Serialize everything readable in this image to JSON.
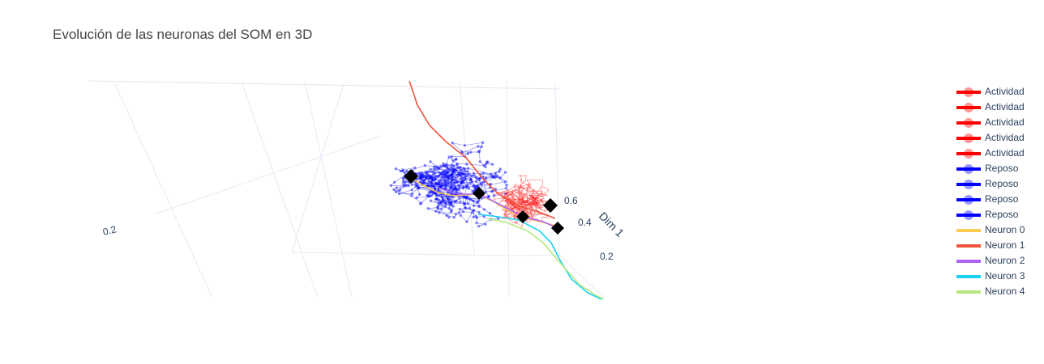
{
  "chart_data": {
    "type": "line3d",
    "title": "Evolución de las neuronas del SOM en 3D",
    "axes": {
      "x": {
        "title": "Dim 1",
        "ticks": [
          "0.2",
          "0.4",
          "0.6"
        ]
      },
      "y": {
        "title": "",
        "ticks": [
          "0.2"
        ]
      }
    },
    "grid": true,
    "legend_position": "right",
    "series": [
      {
        "name": "Actividad",
        "color": "#ff0000",
        "kind": "lines+markers"
      },
      {
        "name": "Actividad",
        "color": "#ff0000",
        "kind": "lines+markers"
      },
      {
        "name": "Actividad",
        "color": "#ff0000",
        "kind": "lines+markers"
      },
      {
        "name": "Actividad",
        "color": "#ff0000",
        "kind": "lines+markers"
      },
      {
        "name": "Actividad",
        "color": "#ff0000",
        "kind": "lines+markers"
      },
      {
        "name": "Reposo",
        "color": "#0000ff",
        "kind": "lines+markers"
      },
      {
        "name": "Reposo",
        "color": "#0000ff",
        "kind": "lines+markers"
      },
      {
        "name": "Reposo",
        "color": "#0000ff",
        "kind": "lines+markers"
      },
      {
        "name": "Reposo",
        "color": "#0000ff",
        "kind": "lines+markers"
      },
      {
        "name": "Neuron 0",
        "color": "#fecb52",
        "kind": "lines"
      },
      {
        "name": "Neuron 1",
        "color": "#ef553b",
        "kind": "lines"
      },
      {
        "name": "Neuron 2",
        "color": "#ab63fa",
        "kind": "lines"
      },
      {
        "name": "Neuron 3",
        "color": "#19d3f3",
        "kind": "lines"
      },
      {
        "name": "Neuron 4",
        "color": "#b6e880",
        "kind": "lines"
      }
    ]
  }
}
